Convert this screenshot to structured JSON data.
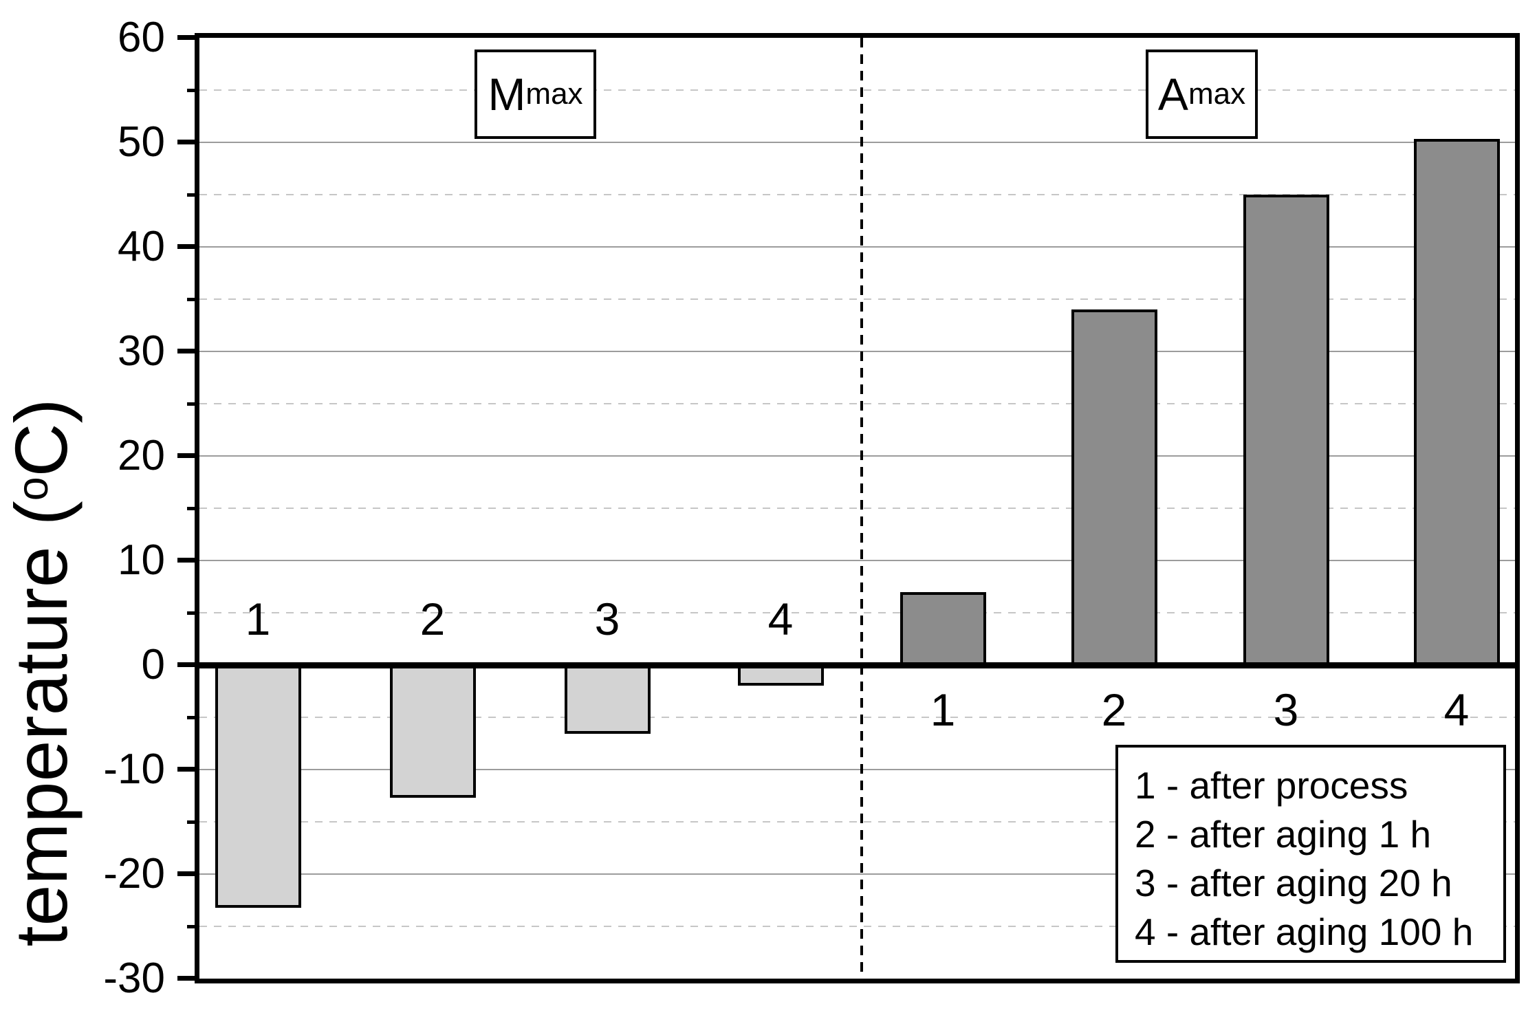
{
  "chart_data": {
    "type": "bar",
    "title": "",
    "ylabel": "temperature (oC)",
    "ylabel_prefix": "temperature (",
    "ylabel_degree": "o",
    "ylabel_suffix": "C)",
    "ylim": [
      -30,
      60
    ],
    "y_major_ticks": [
      {
        "v": 60,
        "label": "60"
      },
      {
        "v": 50,
        "label": "50"
      },
      {
        "v": 40,
        "label": "40"
      },
      {
        "v": 30,
        "label": "30"
      },
      {
        "v": 20,
        "label": "20"
      },
      {
        "v": 10,
        "label": "10"
      },
      {
        "v": 0,
        "label": "0"
      },
      {
        "v": -10,
        "label": "-10"
      },
      {
        "v": -20,
        "label": "-20"
      },
      {
        "v": -30,
        "label": "-30"
      }
    ],
    "y_minor_ticks": [
      55,
      45,
      35,
      25,
      15,
      5,
      -5,
      -15,
      -25
    ],
    "grid": {
      "major_style": "solid",
      "minor_style": "dashed",
      "legend_position": "bottom-right"
    },
    "divider": {
      "orientation": "vertical",
      "style": "dashed"
    },
    "groups": [
      {
        "name": "Mmax",
        "label_main": "M",
        "label_sub": "max",
        "bar_color": "#d3d3d3",
        "bar_labels": [
          "1",
          "2",
          "3",
          "4"
        ],
        "values": [
          -23.2,
          -12.7,
          -6.6,
          -2.0
        ],
        "bar_label_side": "above"
      },
      {
        "name": "Amax",
        "label_main": "A",
        "label_sub": "max",
        "bar_color": "#8c8c8c",
        "bar_labels": [
          "1",
          "2",
          "3",
          "4"
        ],
        "values": [
          7.0,
          34.0,
          45.0,
          50.3
        ],
        "bar_label_side": "below"
      }
    ],
    "legend_items": [
      "1 - after process",
      "2 - after aging 1 h",
      "3 - after aging 20 h",
      "4 - after aging 100 h"
    ]
  }
}
